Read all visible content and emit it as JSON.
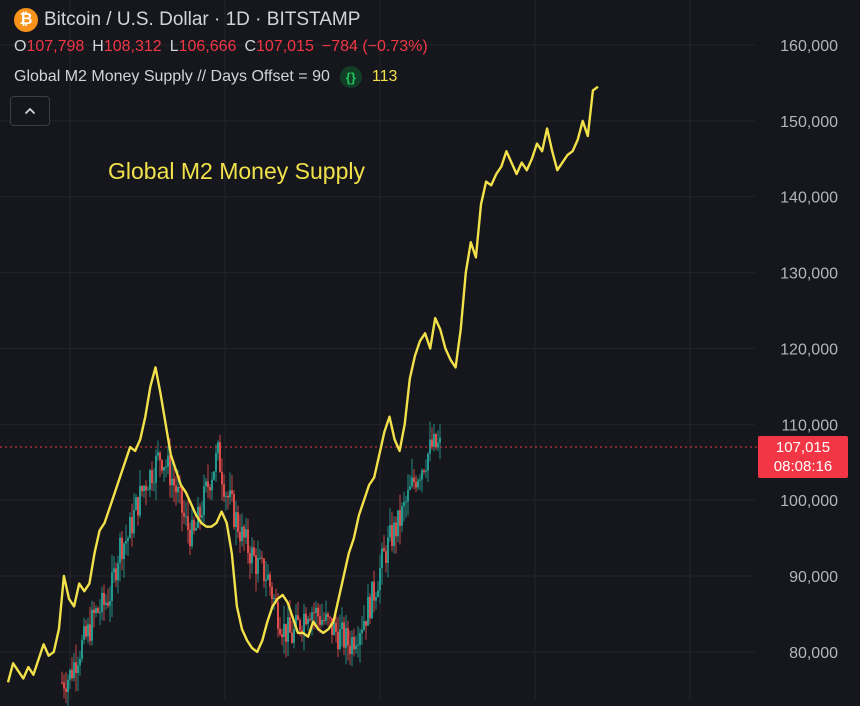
{
  "header": {
    "logo_glyph": "₿",
    "symbol_title": "Bitcoin / U.S. Dollar · 1D · BITSTAMP",
    "ohlc": [
      {
        "key": "O",
        "value": "107,798"
      },
      {
        "key": "H",
        "value": "108,312"
      },
      {
        "key": "L",
        "value": "106,666"
      },
      {
        "key": "C",
        "value": "107,015"
      }
    ],
    "change": "−784 (−0.73%)",
    "indicator_name": "Global M2 Money Supply // Days Offset = 90",
    "indicator_icon_glyph": "{}",
    "indicator_value": "113"
  },
  "annotation": "Global M2 Money Supply",
  "price_label": {
    "price": "107,015",
    "countdown": "08:08:16"
  },
  "colors": {
    "background": "#15171c",
    "grid": "#22252d",
    "m2_line": "#f2e14b",
    "candle_up": "#26a69a",
    "candle_down": "#ef5350",
    "price_line": "#f23645",
    "btc_orange": "#f7931a"
  },
  "chart_data": {
    "type": "line",
    "title": "Bitcoin / U.S. Dollar · 1D · BITSTAMP",
    "y_axis_ticks": [
      80000,
      90000,
      100000,
      110000,
      120000,
      130000,
      140000,
      150000,
      160000
    ],
    "y_axis_tick_labels": [
      "80,000",
      "90,000",
      "100,000",
      "110,000",
      "120,000",
      "130,000",
      "140,000",
      "150,000",
      "160,000"
    ],
    "ylim": [
      75000,
      162500
    ],
    "grid": true,
    "current_price": 107015,
    "series": [
      {
        "name": "Global M2 Money Supply",
        "values": [
          76000,
          78500,
          77500,
          76500,
          78000,
          77000,
          79000,
          81000,
          79500,
          80000,
          83000,
          90000,
          87000,
          86000,
          89000,
          88000,
          89000,
          93000,
          96000,
          97000,
          99000,
          101000,
          103000,
          105000,
          107000,
          106500,
          108000,
          111000,
          115000,
          117500,
          114000,
          110000,
          106000,
          104000,
          102000,
          101000,
          99500,
          98000,
          97000,
          96500,
          96500,
          97000,
          98500,
          97000,
          93000,
          86000,
          83000,
          81500,
          80500,
          80000,
          81500,
          84000,
          86000,
          87000,
          87500,
          86500,
          84500,
          82500,
          82500,
          82000,
          84000,
          83000,
          82500,
          83000,
          84000,
          87000,
          90000,
          93000,
          95000,
          98000,
          100000,
          102000,
          103000,
          106000,
          109000,
          111000,
          108000,
          106500,
          110000,
          116000,
          119000,
          121000,
          122000,
          120000,
          124000,
          122500,
          120000,
          118500,
          117500,
          122500,
          130000,
          134000,
          132000,
          139000,
          142000,
          141500,
          143000,
          144000,
          146000,
          144500,
          143000,
          144500,
          143500,
          145000,
          147000,
          146000,
          149000,
          146000,
          143500,
          144500,
          145500,
          146000,
          147500,
          150000,
          148000,
          154000,
          154500
        ]
      }
    ],
    "btc_candles": {
      "trend_anchor_values": [
        76000,
        77000,
        80000,
        82000,
        85000,
        86000,
        88000,
        94000,
        95000,
        99000,
        102000,
        104000,
        106000,
        104000,
        101000,
        97000,
        95000,
        99000,
        103000,
        106000,
        101000,
        98000,
        95000,
        93000,
        91000,
        90000,
        86000,
        83000,
        82000,
        84000,
        86000,
        85000,
        84000,
        83000,
        82000,
        81000,
        83000,
        85000,
        88000,
        92000,
        95000,
        97000,
        100000,
        103000,
        105000,
        107000,
        107015
      ]
    }
  }
}
